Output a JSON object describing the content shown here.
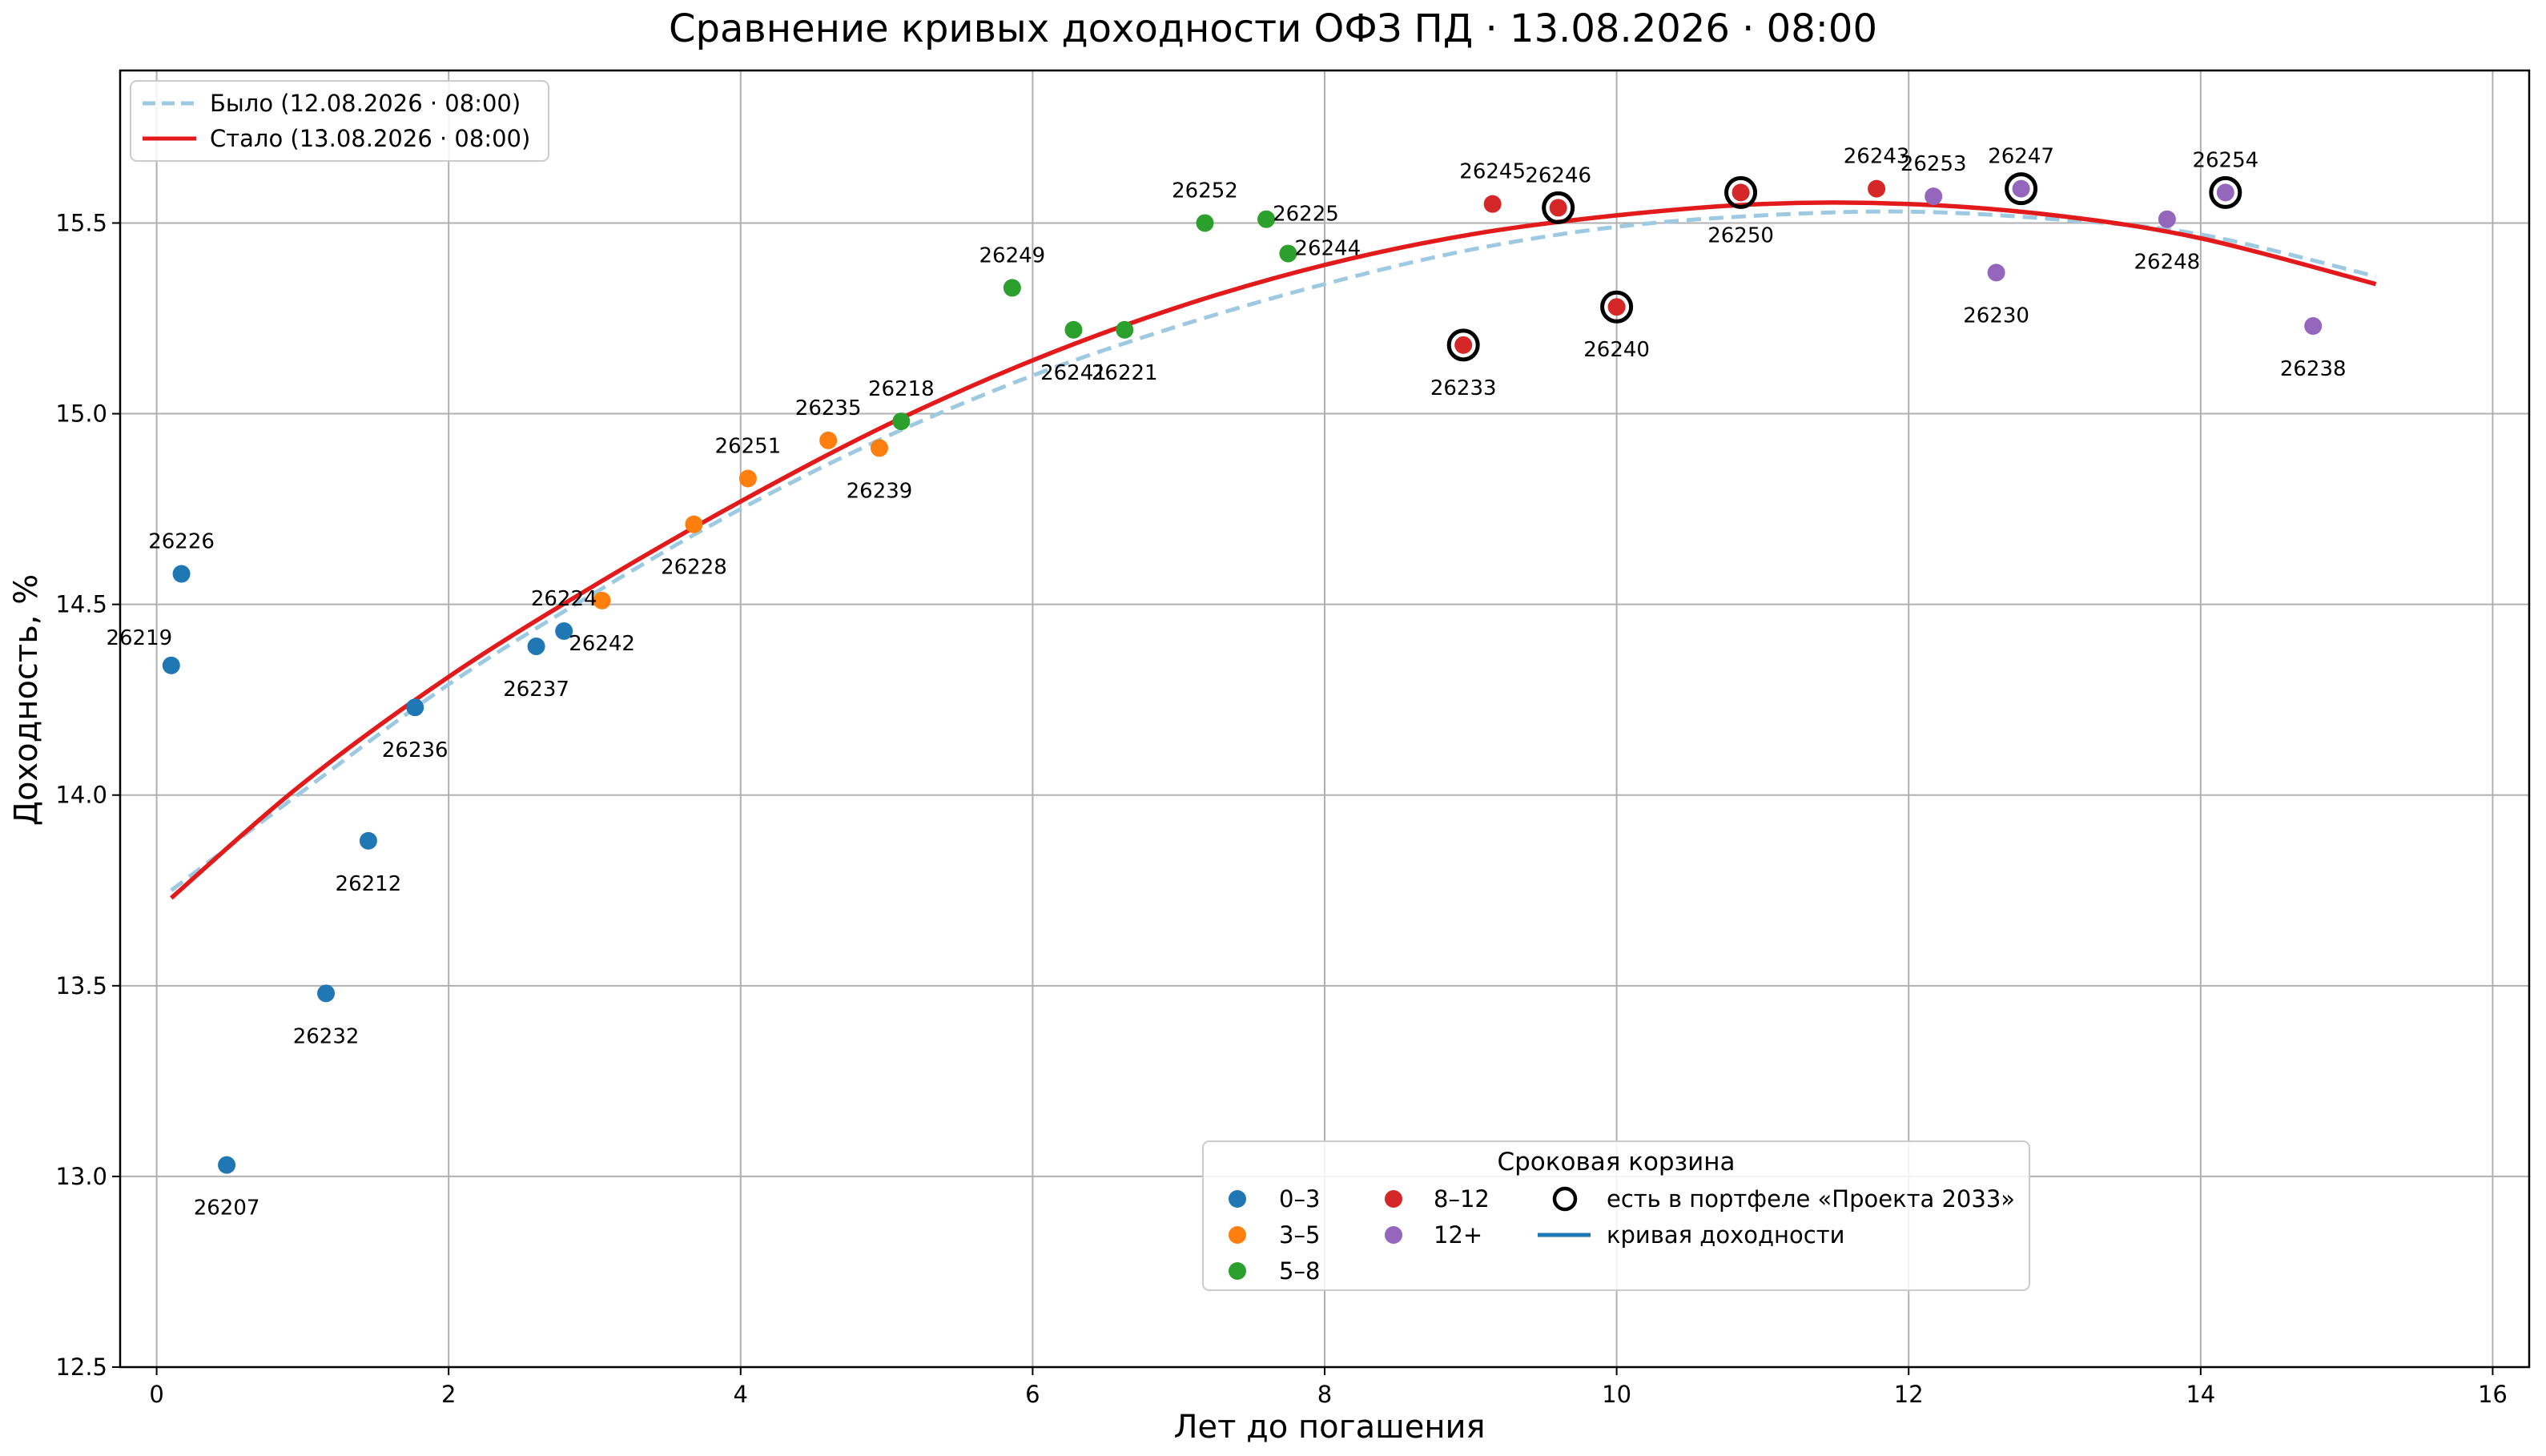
{
  "chart_data": {
    "type": "scatter",
    "title": "Сравнение кривых доходности ОФЗ ПД · 13.08.2026 · 08:00",
    "xlabel": "Лет до погашения",
    "ylabel": "Доходность, %",
    "xlim": [
      -0.25,
      16.25
    ],
    "ylim": [
      12.5,
      15.9
    ],
    "xticks": [
      "0",
      "2",
      "4",
      "6",
      "8",
      "10",
      "12",
      "14",
      "16"
    ],
    "yticks": [
      "12.5",
      "13.0",
      "13.5",
      "14.0",
      "14.5",
      "15.0",
      "15.5"
    ],
    "grid": true,
    "colors": {
      "0–3": "#1f77b4",
      "3–5": "#ff7f0e",
      "5–8": "#2ca02c",
      "8–12": "#d62728",
      "12+": "#9467bd",
      "curve_before": "#9ecae1",
      "curve_after": "#e31a1c"
    },
    "curves": [
      {
        "name": "Было (12.08.2026 · 08:00)",
        "style": "dashed",
        "color": "#9ecae1",
        "x": [
          0.1,
          1,
          2,
          3,
          4,
          5,
          6,
          7,
          8,
          9,
          10,
          11,
          12,
          13,
          14,
          15.2
        ],
        "y": [
          13.75,
          14.01,
          14.29,
          14.53,
          14.75,
          14.94,
          15.1,
          15.23,
          15.34,
          15.43,
          15.49,
          15.52,
          15.53,
          15.51,
          15.47,
          15.36
        ]
      },
      {
        "name": "Стало (13.08.2026 · 08:00)",
        "style": "solid",
        "color": "#e31a1c",
        "x": [
          0.1,
          1,
          2,
          3,
          4,
          5,
          6,
          7,
          8,
          9,
          10,
          11,
          12,
          13,
          14,
          15.2
        ],
        "y": [
          13.73,
          14.03,
          14.31,
          14.55,
          14.77,
          14.97,
          15.14,
          15.28,
          15.39,
          15.47,
          15.52,
          15.55,
          15.55,
          15.52,
          15.46,
          15.34
        ]
      }
    ],
    "points": [
      {
        "label": "26219",
        "x": 0.1,
        "y": 14.34,
        "bucket": "0–3",
        "portfolio": false,
        "lpos": "above"
      },
      {
        "label": "26226",
        "x": 0.17,
        "y": 14.58,
        "bucket": "0–3",
        "portfolio": false,
        "lpos": "above"
      },
      {
        "label": "26207",
        "x": 0.48,
        "y": 13.03,
        "bucket": "0–3",
        "portfolio": false,
        "lpos": "below"
      },
      {
        "label": "26232",
        "x": 1.16,
        "y": 13.48,
        "bucket": "0–3",
        "portfolio": false,
        "lpos": "below"
      },
      {
        "label": "26212",
        "x": 1.45,
        "y": 13.88,
        "bucket": "0–3",
        "portfolio": false,
        "lpos": "below"
      },
      {
        "label": "26236",
        "x": 1.77,
        "y": 14.23,
        "bucket": "0–3",
        "portfolio": false,
        "lpos": "below"
      },
      {
        "label": "26237",
        "x": 2.6,
        "y": 14.39,
        "bucket": "0–3",
        "portfolio": false,
        "lpos": "below"
      },
      {
        "label": "26224",
        "x": 2.79,
        "y": 14.43,
        "bucket": "0–3",
        "portfolio": false,
        "lpos": "above"
      },
      {
        "label": "26242",
        "x": 3.05,
        "y": 14.51,
        "bucket": "3–5",
        "portfolio": false,
        "lpos": "below"
      },
      {
        "label": "26228",
        "x": 3.68,
        "y": 14.71,
        "bucket": "3–5",
        "portfolio": false,
        "lpos": "below"
      },
      {
        "label": "26251",
        "x": 4.05,
        "y": 14.83,
        "bucket": "3–5",
        "portfolio": false,
        "lpos": "above"
      },
      {
        "label": "26235",
        "x": 4.6,
        "y": 14.93,
        "bucket": "3–5",
        "portfolio": false,
        "lpos": "above"
      },
      {
        "label": "26239",
        "x": 4.95,
        "y": 14.91,
        "bucket": "3–5",
        "portfolio": false,
        "lpos": "below"
      },
      {
        "label": "26218",
        "x": 5.1,
        "y": 14.98,
        "bucket": "5–8",
        "portfolio": false,
        "lpos": "above"
      },
      {
        "label": "26249",
        "x": 5.86,
        "y": 15.33,
        "bucket": "5–8",
        "portfolio": false,
        "lpos": "above"
      },
      {
        "label": "26241",
        "x": 6.28,
        "y": 15.22,
        "bucket": "5–8",
        "portfolio": false,
        "lpos": "below"
      },
      {
        "label": "26221",
        "x": 6.63,
        "y": 15.22,
        "bucket": "5–8",
        "portfolio": false,
        "lpos": "below"
      },
      {
        "label": "26252",
        "x": 7.18,
        "y": 15.5,
        "bucket": "5–8",
        "portfolio": false,
        "lpos": "above"
      },
      {
        "label": "26225",
        "x": 7.6,
        "y": 15.51,
        "bucket": "5–8",
        "portfolio": false,
        "lpos": "right"
      },
      {
        "label": "26244",
        "x": 7.75,
        "y": 15.42,
        "bucket": "5–8",
        "portfolio": false,
        "lpos": "right"
      },
      {
        "label": "26233",
        "x": 8.95,
        "y": 15.18,
        "bucket": "8–12",
        "portfolio": true,
        "lpos": "below"
      },
      {
        "label": "26245",
        "x": 9.15,
        "y": 15.55,
        "bucket": "8–12",
        "portfolio": false,
        "lpos": "above"
      },
      {
        "label": "26246",
        "x": 9.6,
        "y": 15.54,
        "bucket": "8–12",
        "portfolio": true,
        "lpos": "above"
      },
      {
        "label": "26240",
        "x": 10.0,
        "y": 15.28,
        "bucket": "8–12",
        "portfolio": true,
        "lpos": "below"
      },
      {
        "label": "26250",
        "x": 10.85,
        "y": 15.58,
        "bucket": "8–12",
        "portfolio": true,
        "lpos": "below"
      },
      {
        "label": "26243",
        "x": 11.78,
        "y": 15.59,
        "bucket": "8–12",
        "portfolio": false,
        "lpos": "above"
      },
      {
        "label": "26253",
        "x": 12.17,
        "y": 15.57,
        "bucket": "12+",
        "portfolio": false,
        "lpos": "above"
      },
      {
        "label": "26230",
        "x": 12.6,
        "y": 15.37,
        "bucket": "12+",
        "portfolio": false,
        "lpos": "below"
      },
      {
        "label": "26247",
        "x": 12.77,
        "y": 15.59,
        "bucket": "12+",
        "portfolio": true,
        "lpos": "above"
      },
      {
        "label": "26248",
        "x": 13.77,
        "y": 15.51,
        "bucket": "12+",
        "portfolio": false,
        "lpos": "below"
      },
      {
        "label": "26254",
        "x": 14.17,
        "y": 15.58,
        "bucket": "12+",
        "portfolio": true,
        "lpos": "above"
      },
      {
        "label": "26238",
        "x": 14.77,
        "y": 15.23,
        "bucket": "12+",
        "portfolio": false,
        "lpos": "below"
      }
    ],
    "legend_lines": {
      "placement": "top-left",
      "before": "Было (12.08.2026 · 08:00)",
      "after": "Стало (13.08.2026 · 08:00)"
    },
    "legend_buckets": {
      "placement": "lower-center",
      "title": "Сроковая корзина",
      "b03": "0–3",
      "b35": "3–5",
      "b58": "5–8",
      "b812": "8–12",
      "b12p": "12+",
      "portfolio": "есть в портфеле «Проекта 2033»",
      "curve": "кривая доходности"
    }
  }
}
